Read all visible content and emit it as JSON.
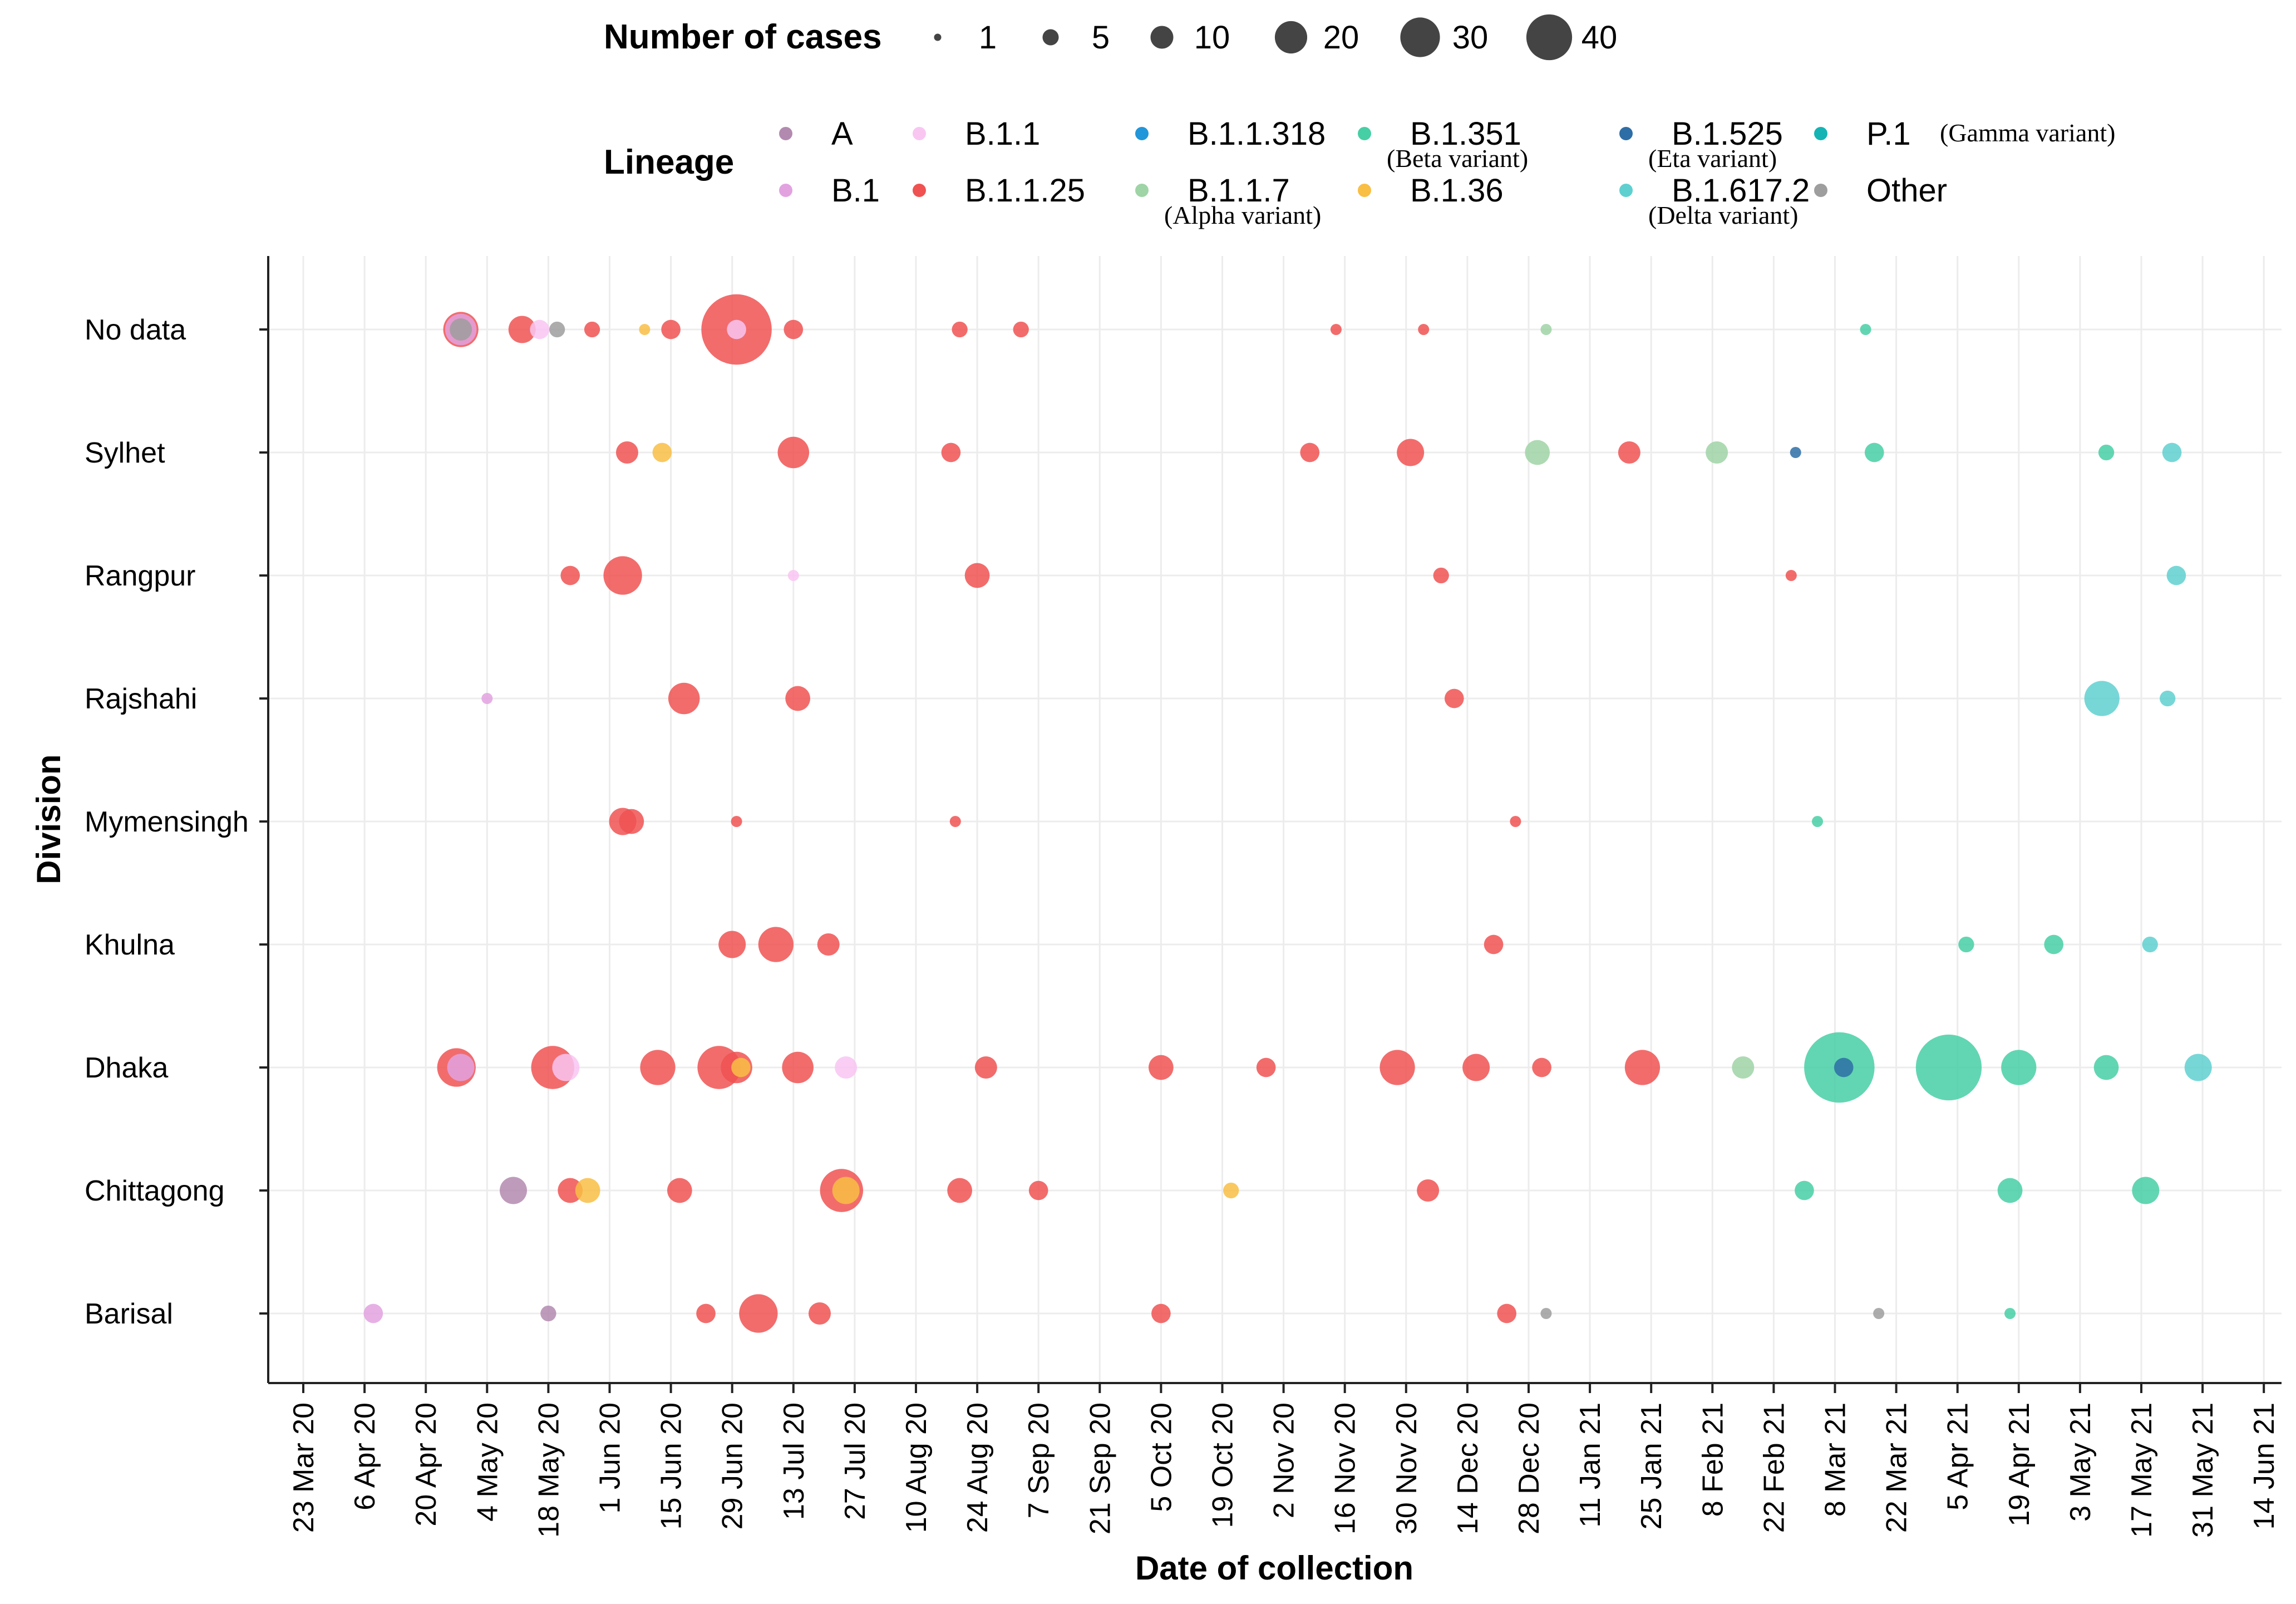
{
  "chart_data": {
    "type": "scatter",
    "title": "",
    "xlabel": "Date of collection",
    "ylabel": "Division",
    "x_ticks": [
      "23 Mar 20",
      "6 Apr 20",
      "20 Apr 20",
      "4 May 20",
      "18 May 20",
      "1 Jun 20",
      "15 Jun 20",
      "29 Jun 20",
      "13 Jul 20",
      "27 Jul 20",
      "10 Aug 20",
      "24 Aug 20",
      "7 Sep 20",
      "21 Sep 20",
      "5 Oct 20",
      "19 Oct 20",
      "2 Nov 20",
      "16 Nov 20",
      "30 Nov 20",
      "14 Dec 20",
      "28 Dec 20",
      "11 Jan 21",
      "25 Jan 21",
      "8 Feb 21",
      "22 Feb 21",
      "8 Mar 21",
      "22 Mar 21",
      "5 Apr 21",
      "19 Apr 21",
      "3 May 21",
      "17 May 21",
      "31 May 21",
      "14 Jun 21"
    ],
    "x_unit": "days since 23 Mar 20",
    "xlim": [
      0,
      448
    ],
    "divisions": [
      "No data",
      "Sylhet",
      "Rangpur",
      "Rajshahi",
      "Mymensingh",
      "Khulna",
      "Dhaka",
      "Chittagong",
      "Barisal"
    ],
    "size_legend": {
      "title": "Number of cases",
      "labels": [
        "1",
        "5",
        "10",
        "20",
        "30",
        "40"
      ],
      "values": [
        1,
        5,
        10,
        20,
        30,
        40
      ]
    },
    "color_legend": {
      "title": "Lineage",
      "items": [
        {
          "key": "A",
          "label": "A",
          "note": "",
          "color": "#b38aaf"
        },
        {
          "key": "B.1",
          "label": "B.1",
          "note": "",
          "color": "#e2a2e0"
        },
        {
          "key": "B.1.1",
          "label": "B.1.1",
          "note": "",
          "color": "#f9c6f2"
        },
        {
          "key": "B.1.1.25",
          "label": "B.1.1.25",
          "note": "",
          "color": "#f05252"
        },
        {
          "key": "B.1.1.318",
          "label": "B.1.1.318",
          "note": "",
          "color": "#2196d9"
        },
        {
          "key": "B.1.1.7",
          "label": "B.1.1.7",
          "note": "(Alpha variant)",
          "color": "#9fd4a6"
        },
        {
          "key": "B.1.351",
          "label": "B.1.351",
          "note": "(Beta variant)",
          "color": "#46cfa4"
        },
        {
          "key": "B.1.36",
          "label": "B.1.36",
          "note": "",
          "color": "#f9be44"
        },
        {
          "key": "B.1.525",
          "label": "B.1.525",
          "note": "(Eta variant)",
          "color": "#2d6ea6"
        },
        {
          "key": "B.1.617.2",
          "label": "B.1.617.2",
          "note": "(Delta variant)",
          "color": "#5fd0d0"
        },
        {
          "key": "P.1",
          "label": "P.1",
          "note": "(Gamma variant)",
          "color": "#14b4b4"
        },
        {
          "key": "Other",
          "label": "Other",
          "note": "",
          "color": "#9e9e9e"
        }
      ]
    },
    "points": [
      {
        "division": "No data",
        "day": 36,
        "lineage": "B.1.1.25",
        "cases": 10
      },
      {
        "division": "No data",
        "day": 36,
        "lineage": "B.1",
        "cases": 8
      },
      {
        "division": "No data",
        "day": 36,
        "lineage": "Other",
        "cases": 4
      },
      {
        "division": "No data",
        "day": 50,
        "lineage": "B.1.1.25",
        "cases": 6
      },
      {
        "division": "No data",
        "day": 54,
        "lineage": "B.1.1",
        "cases": 3
      },
      {
        "division": "No data",
        "day": 58,
        "lineage": "Other",
        "cases": 2
      },
      {
        "division": "No data",
        "day": 66,
        "lineage": "B.1.1.25",
        "cases": 2
      },
      {
        "division": "No data",
        "day": 78,
        "lineage": "B.1.36",
        "cases": 1
      },
      {
        "division": "No data",
        "day": 84,
        "lineage": "B.1.1.25",
        "cases": 3
      },
      {
        "division": "No data",
        "day": 99,
        "lineage": "B.1.1.25",
        "cases": 40
      },
      {
        "division": "No data",
        "day": 99,
        "lineage": "B.1.1",
        "cases": 3
      },
      {
        "division": "No data",
        "day": 112,
        "lineage": "B.1.1.25",
        "cases": 3
      },
      {
        "division": "No data",
        "day": 150,
        "lineage": "B.1.1.25",
        "cases": 2
      },
      {
        "division": "No data",
        "day": 164,
        "lineage": "B.1.1.25",
        "cases": 2
      },
      {
        "division": "No data",
        "day": 236,
        "lineage": "B.1.1.25",
        "cases": 1
      },
      {
        "division": "No data",
        "day": 256,
        "lineage": "B.1.1.25",
        "cases": 1
      },
      {
        "division": "No data",
        "day": 284,
        "lineage": "B.1.1.7",
        "cases": 1
      },
      {
        "division": "No data",
        "day": 357,
        "lineage": "B.1.351",
        "cases": 1
      },
      {
        "division": "Sylhet",
        "day": 74,
        "lineage": "B.1.1.25",
        "cases": 4
      },
      {
        "division": "Sylhet",
        "day": 82,
        "lineage": "B.1.36",
        "cases": 3
      },
      {
        "division": "Sylhet",
        "day": 112,
        "lineage": "B.1.1.25",
        "cases": 8
      },
      {
        "division": "Sylhet",
        "day": 148,
        "lineage": "B.1.1.25",
        "cases": 3
      },
      {
        "division": "Sylhet",
        "day": 230,
        "lineage": "B.1.1.25",
        "cases": 3
      },
      {
        "division": "Sylhet",
        "day": 253,
        "lineage": "B.1.1.25",
        "cases": 6
      },
      {
        "division": "Sylhet",
        "day": 282,
        "lineage": "B.1.1.7",
        "cases": 5
      },
      {
        "division": "Sylhet",
        "day": 303,
        "lineage": "B.1.1.25",
        "cases": 4
      },
      {
        "division": "Sylhet",
        "day": 323,
        "lineage": "B.1.1.7",
        "cases": 4
      },
      {
        "division": "Sylhet",
        "day": 341,
        "lineage": "B.1.525",
        "cases": 1
      },
      {
        "division": "Sylhet",
        "day": 359,
        "lineage": "B.1.351",
        "cases": 3
      },
      {
        "division": "Sylhet",
        "day": 412,
        "lineage": "B.1.351",
        "cases": 2
      },
      {
        "division": "Sylhet",
        "day": 427,
        "lineage": "B.1.617.2",
        "cases": 3
      },
      {
        "division": "Rangpur",
        "day": 61,
        "lineage": "B.1.1.25",
        "cases": 3
      },
      {
        "division": "Rangpur",
        "day": 73,
        "lineage": "B.1.1.25",
        "cases": 12
      },
      {
        "division": "Rangpur",
        "day": 112,
        "lineage": "B.1.1",
        "cases": 1
      },
      {
        "division": "Rangpur",
        "day": 154,
        "lineage": "B.1.1.25",
        "cases": 5
      },
      {
        "division": "Rangpur",
        "day": 260,
        "lineage": "B.1.1.25",
        "cases": 2
      },
      {
        "division": "Rangpur",
        "day": 340,
        "lineage": "B.1.1.25",
        "cases": 1
      },
      {
        "division": "Rangpur",
        "day": 428,
        "lineage": "B.1.617.2",
        "cases": 3
      },
      {
        "division": "Rajshahi",
        "day": 42,
        "lineage": "B.1",
        "cases": 1
      },
      {
        "division": "Rajshahi",
        "day": 87,
        "lineage": "B.1.1.25",
        "cases": 8
      },
      {
        "division": "Rajshahi",
        "day": 113,
        "lineage": "B.1.1.25",
        "cases": 5
      },
      {
        "division": "Rajshahi",
        "day": 263,
        "lineage": "B.1.1.25",
        "cases": 3
      },
      {
        "division": "Rajshahi",
        "day": 411,
        "lineage": "B.1.617.2",
        "cases": 10
      },
      {
        "division": "Rajshahi",
        "day": 426,
        "lineage": "B.1.617.2",
        "cases": 2
      },
      {
        "division": "Mymensingh",
        "day": 73,
        "lineage": "B.1.1.25",
        "cases": 6
      },
      {
        "division": "Mymensingh",
        "day": 75,
        "lineage": "B.1.1.25",
        "cases": 5
      },
      {
        "division": "Mymensingh",
        "day": 99,
        "lineage": "B.1.1.25",
        "cases": 1
      },
      {
        "division": "Mymensingh",
        "day": 149,
        "lineage": "B.1.1.25",
        "cases": 1
      },
      {
        "division": "Mymensingh",
        "day": 277,
        "lineage": "B.1.1.25",
        "cases": 1
      },
      {
        "division": "Mymensingh",
        "day": 346,
        "lineage": "B.1.351",
        "cases": 1
      },
      {
        "division": "Khulna",
        "day": 98,
        "lineage": "B.1.1.25",
        "cases": 6
      },
      {
        "division": "Khulna",
        "day": 108,
        "lineage": "B.1.1.25",
        "cases": 10
      },
      {
        "division": "Khulna",
        "day": 120,
        "lineage": "B.1.1.25",
        "cases": 4
      },
      {
        "division": "Khulna",
        "day": 272,
        "lineage": "B.1.1.25",
        "cases": 3
      },
      {
        "division": "Khulna",
        "day": 380,
        "lineage": "B.1.351",
        "cases": 2
      },
      {
        "division": "Khulna",
        "day": 400,
        "lineage": "B.1.351",
        "cases": 3
      },
      {
        "division": "Khulna",
        "day": 422,
        "lineage": "B.1.617.2",
        "cases": 2
      },
      {
        "division": "Dhaka",
        "day": 35,
        "lineage": "B.1.1.25",
        "cases": 12
      },
      {
        "division": "Dhaka",
        "day": 36,
        "lineage": "B.1",
        "cases": 6
      },
      {
        "division": "Dhaka",
        "day": 57,
        "lineage": "B.1.1.25",
        "cases": 15
      },
      {
        "division": "Dhaka",
        "day": 60,
        "lineage": "B.1.1",
        "cases": 6
      },
      {
        "division": "Dhaka",
        "day": 81,
        "lineage": "B.1.1.25",
        "cases": 10
      },
      {
        "division": "Dhaka",
        "day": 95,
        "lineage": "B.1.1.25",
        "cases": 15
      },
      {
        "division": "Dhaka",
        "day": 99,
        "lineage": "B.1.1.25",
        "cases": 8
      },
      {
        "division": "Dhaka",
        "day": 100,
        "lineage": "B.1.36",
        "cases": 3
      },
      {
        "division": "Dhaka",
        "day": 113,
        "lineage": "B.1.1.25",
        "cases": 8
      },
      {
        "division": "Dhaka",
        "day": 124,
        "lineage": "B.1.1",
        "cases": 4
      },
      {
        "division": "Dhaka",
        "day": 156,
        "lineage": "B.1.1.25",
        "cases": 4
      },
      {
        "division": "Dhaka",
        "day": 196,
        "lineage": "B.1.1.25",
        "cases": 5
      },
      {
        "division": "Dhaka",
        "day": 220,
        "lineage": "B.1.1.25",
        "cases": 3
      },
      {
        "division": "Dhaka",
        "day": 250,
        "lineage": "B.1.1.25",
        "cases": 10
      },
      {
        "division": "Dhaka",
        "day": 268,
        "lineage": "B.1.1.25",
        "cases": 6
      },
      {
        "division": "Dhaka",
        "day": 283,
        "lineage": "B.1.1.25",
        "cases": 3
      },
      {
        "division": "Dhaka",
        "day": 306,
        "lineage": "B.1.1.25",
        "cases": 10
      },
      {
        "division": "Dhaka",
        "day": 329,
        "lineage": "B.1.1.7",
        "cases": 4
      },
      {
        "division": "Dhaka",
        "day": 351,
        "lineage": "B.1.351",
        "cases": 40
      },
      {
        "division": "Dhaka",
        "day": 352,
        "lineage": "B.1.525",
        "cases": 3
      },
      {
        "division": "Dhaka",
        "day": 376,
        "lineage": "B.1.351",
        "cases": 35
      },
      {
        "division": "Dhaka",
        "day": 392,
        "lineage": "B.1.351",
        "cases": 10
      },
      {
        "division": "Dhaka",
        "day": 412,
        "lineage": "B.1.351",
        "cases": 5
      },
      {
        "division": "Dhaka",
        "day": 433,
        "lineage": "B.1.617.2",
        "cases": 6
      },
      {
        "division": "Chittagong",
        "day": 48,
        "lineage": "A",
        "cases": 6
      },
      {
        "division": "Chittagong",
        "day": 61,
        "lineage": "B.1.1.25",
        "cases": 5
      },
      {
        "division": "Chittagong",
        "day": 65,
        "lineage": "B.1.36",
        "cases": 5
      },
      {
        "division": "Chittagong",
        "day": 86,
        "lineage": "B.1.1.25",
        "cases": 5
      },
      {
        "division": "Chittagong",
        "day": 123,
        "lineage": "B.1.1.25",
        "cases": 15
      },
      {
        "division": "Chittagong",
        "day": 124,
        "lineage": "B.1.36",
        "cases": 6
      },
      {
        "division": "Chittagong",
        "day": 150,
        "lineage": "B.1.1.25",
        "cases": 5
      },
      {
        "division": "Chittagong",
        "day": 168,
        "lineage": "B.1.1.25",
        "cases": 3
      },
      {
        "division": "Chittagong",
        "day": 212,
        "lineage": "B.1.36",
        "cases": 2
      },
      {
        "division": "Chittagong",
        "day": 257,
        "lineage": "B.1.1.25",
        "cases": 4
      },
      {
        "division": "Chittagong",
        "day": 343,
        "lineage": "B.1.351",
        "cases": 3
      },
      {
        "division": "Chittagong",
        "day": 390,
        "lineage": "B.1.351",
        "cases": 5
      },
      {
        "division": "Chittagong",
        "day": 421,
        "lineage": "B.1.351",
        "cases": 6
      },
      {
        "division": "Barisal",
        "day": 16,
        "lineage": "B.1",
        "cases": 3
      },
      {
        "division": "Barisal",
        "day": 56,
        "lineage": "A",
        "cases": 2
      },
      {
        "division": "Barisal",
        "day": 92,
        "lineage": "B.1.1.25",
        "cases": 3
      },
      {
        "division": "Barisal",
        "day": 104,
        "lineage": "B.1.1.25",
        "cases": 12
      },
      {
        "division": "Barisal",
        "day": 118,
        "lineage": "B.1.1.25",
        "cases": 4
      },
      {
        "division": "Barisal",
        "day": 196,
        "lineage": "B.1.1.25",
        "cases": 3
      },
      {
        "division": "Barisal",
        "day": 275,
        "lineage": "B.1.1.25",
        "cases": 3
      },
      {
        "division": "Barisal",
        "day": 284,
        "lineage": "Other",
        "cases": 1
      },
      {
        "division": "Barisal",
        "day": 360,
        "lineage": "Other",
        "cases": 1
      },
      {
        "division": "Barisal",
        "day": 390,
        "lineage": "B.1.351",
        "cases": 1
      }
    ]
  }
}
